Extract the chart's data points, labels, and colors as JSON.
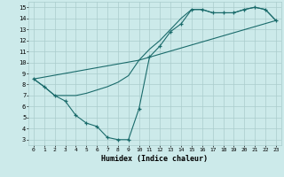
{
  "xlabel": "Humidex (Indice chaleur)",
  "bg_color": "#cceaea",
  "grid_color": "#aacccc",
  "line_color": "#1a6b6b",
  "xlim": [
    -0.5,
    23.5
  ],
  "ylim": [
    2.5,
    15.5
  ],
  "xticks": [
    0,
    1,
    2,
    3,
    4,
    5,
    6,
    7,
    8,
    9,
    10,
    11,
    12,
    13,
    14,
    15,
    16,
    17,
    18,
    19,
    20,
    21,
    22,
    23
  ],
  "yticks": [
    3,
    4,
    5,
    6,
    7,
    8,
    9,
    10,
    11,
    12,
    13,
    14,
    15
  ],
  "line1_x": [
    0,
    1,
    2,
    3,
    4,
    5,
    6,
    7,
    8,
    9,
    10,
    11,
    12,
    13,
    14,
    15,
    16,
    17,
    18,
    19,
    20,
    21,
    22,
    23
  ],
  "line1_y": [
    8.5,
    7.8,
    7.0,
    6.5,
    5.2,
    4.5,
    4.2,
    3.2,
    3.0,
    3.0,
    5.8,
    10.5,
    11.5,
    12.8,
    13.5,
    14.8,
    14.8,
    14.5,
    14.5,
    14.5,
    14.8,
    15.0,
    14.8,
    13.8
  ],
  "line2_x": [
    0,
    1,
    2,
    3,
    4,
    5,
    6,
    7,
    8,
    9,
    10,
    11,
    12,
    13,
    14,
    15,
    16,
    17,
    18,
    19,
    20,
    21,
    22,
    23
  ],
  "line2_y": [
    8.5,
    7.8,
    7.0,
    7.0,
    7.0,
    7.2,
    7.5,
    7.8,
    8.2,
    8.8,
    10.2,
    11.2,
    12.0,
    13.0,
    14.0,
    14.8,
    14.8,
    14.5,
    14.5,
    14.5,
    14.8,
    15.0,
    14.8,
    13.8
  ],
  "line3_x": [
    0,
    10,
    23
  ],
  "line3_y": [
    8.5,
    10.2,
    13.8
  ]
}
